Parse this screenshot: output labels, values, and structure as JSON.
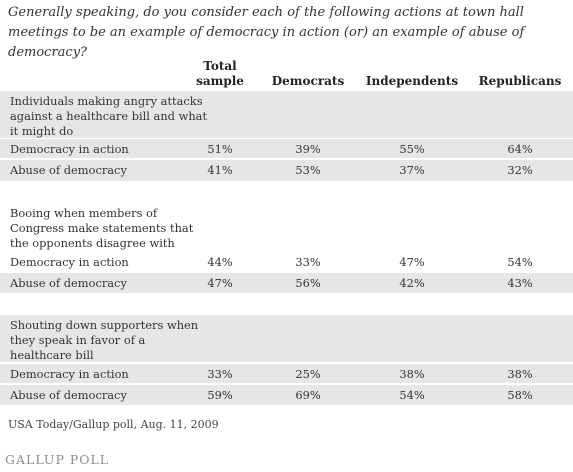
{
  "title": "Generally speaking, do you consider each of the following actions at town hall meetings to be an example of democracy in action (or) an example of abuse of democracy?",
  "columns": [
    "Total sample",
    "Democrats",
    "Independents",
    "Republicans"
  ],
  "chart_data": {
    "type": "table",
    "columns": [
      "Total sample",
      "Democrats",
      "Independents",
      "Republicans"
    ],
    "groups": [
      {
        "label": "Individuals making angry attacks against a healthcare bill and what it might do",
        "rows": [
          {
            "label": "Democracy in action",
            "values": [
              "51%",
              "39%",
              "55%",
              "64%"
            ]
          },
          {
            "label": "Abuse of democracy",
            "values": [
              "41%",
              "53%",
              "37%",
              "32%"
            ]
          }
        ]
      },
      {
        "label": "Booing when members of Congress make statements that the opponents disagree with",
        "rows": [
          {
            "label": "Democracy in action",
            "values": [
              "44%",
              "33%",
              "47%",
              "54%"
            ]
          },
          {
            "label": "Abuse of democracy",
            "values": [
              "47%",
              "56%",
              "42%",
              "43%"
            ]
          }
        ]
      },
      {
        "label": "Shouting down supporters when they speak in favor of a healthcare bill",
        "rows": [
          {
            "label": "Democracy in action",
            "values": [
              "33%",
              "25%",
              "38%",
              "38%"
            ]
          },
          {
            "label": "Abuse of democracy",
            "values": [
              "59%",
              "69%",
              "54%",
              "58%"
            ]
          }
        ]
      }
    ]
  },
  "source": "USA Today/Gallup poll, Aug. 11, 2009",
  "logo": "GALLUP POLL"
}
